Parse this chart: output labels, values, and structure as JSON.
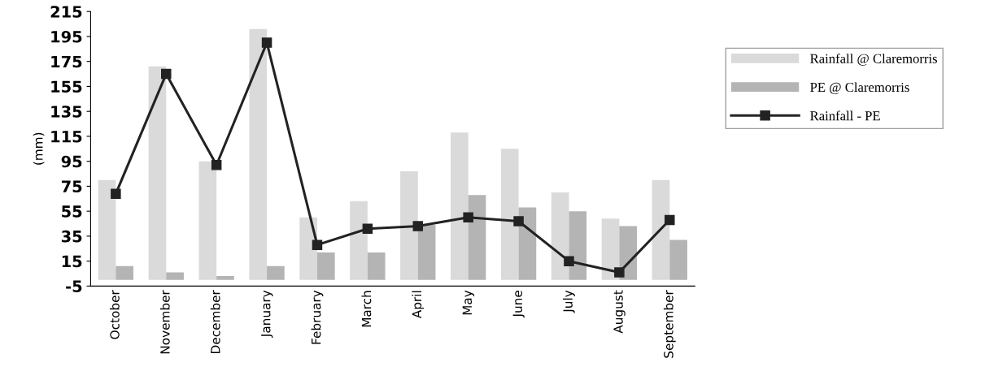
{
  "chart_data": {
    "type": "bar",
    "ylabel": "(mm)",
    "categories": [
      "October",
      "November",
      "December",
      "January",
      "February",
      "March",
      "April",
      "May",
      "June",
      "July",
      "August",
      "September"
    ],
    "series": [
      {
        "name": "Rainfall @ Claremorris",
        "color": "#dadada",
        "values": [
          80,
          171,
          95,
          201,
          50,
          63,
          87,
          118,
          105,
          70,
          49,
          80
        ]
      },
      {
        "name": "PE @ Claremorris",
        "color": "#b4b4b4",
        "values": [
          11,
          6,
          3,
          11,
          22,
          22,
          44,
          68,
          58,
          55,
          43,
          32
        ]
      },
      {
        "name": "Rainfall - PE",
        "type": "line",
        "color": "#222222",
        "marker": "square",
        "values": [
          69,
          165,
          92,
          190,
          28,
          41,
          43,
          50,
          47,
          15,
          6,
          48
        ]
      }
    ],
    "ylim": [
      -5,
      215
    ],
    "yticks": [
      -5,
      15,
      35,
      55,
      75,
      95,
      115,
      135,
      155,
      175,
      195,
      215
    ],
    "grid": false,
    "legend": "right"
  }
}
